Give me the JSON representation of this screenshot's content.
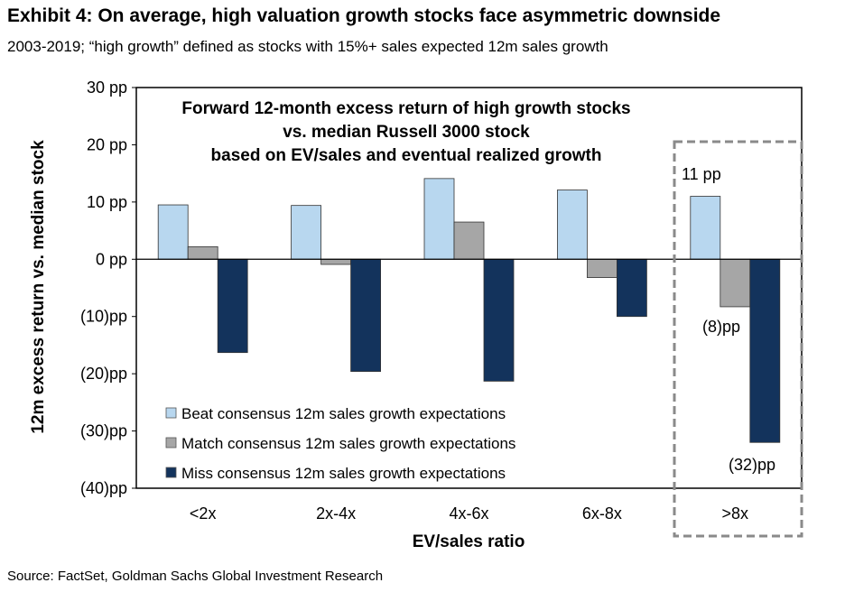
{
  "header": {
    "title": "Exhibit 4: On average, high valuation growth stocks face asymmetric downside",
    "subtitle": "2003-2019; “high growth” defined as stocks with 15%+ sales expected 12m sales growth"
  },
  "footer": {
    "source": "Source: FactSet, Goldman Sachs Global Investment Research"
  },
  "chart_data": {
    "type": "bar",
    "title_lines": [
      "Forward 12-month excess return of high growth stocks",
      "vs. median Russell 3000 stock",
      "based on EV/sales and eventual realized growth"
    ],
    "xlabel": "EV/sales ratio",
    "ylabel": "12m excess return vs. median stock",
    "categories": [
      "<2x",
      "2x-4x",
      "4x-6x",
      "6x-8x",
      ">8x"
    ],
    "ylim": [
      -40,
      30
    ],
    "yticks": [
      30,
      20,
      10,
      0,
      -10,
      -20,
      -30,
      -40
    ],
    "ytick_labels": [
      "30 pp",
      "20 pp",
      "10 pp",
      "0 pp",
      "(10)pp",
      "(20)pp",
      "(30)pp",
      "(40)pp"
    ],
    "series": [
      {
        "name": "Beat consensus 12m sales growth expectations",
        "color": "#b8d7ef",
        "values": [
          9.5,
          9.4,
          14.1,
          12.1,
          11.0
        ]
      },
      {
        "name": "Match consensus 12m sales growth expectations",
        "color": "#a6a6a6",
        "values": [
          2.2,
          -0.9,
          6.5,
          -3.2,
          -8.3
        ]
      },
      {
        "name": "Miss consensus 12m sales growth expectations",
        "color": "#13335c",
        "values": [
          -16.3,
          -19.6,
          -21.3,
          -10.0,
          -32.0
        ]
      }
    ],
    "legend": {
      "position": "bottom-left"
    },
    "grid": false,
    "highlight": {
      "category": ">8x",
      "style": "dashed-box"
    },
    "annotations": [
      {
        "text": "11 pp",
        "category": ">8x",
        "series": 0
      },
      {
        "text": "(8)pp",
        "category": ">8x",
        "series": 1
      },
      {
        "text": "(32)pp",
        "category": ">8x",
        "series": 2
      }
    ]
  }
}
